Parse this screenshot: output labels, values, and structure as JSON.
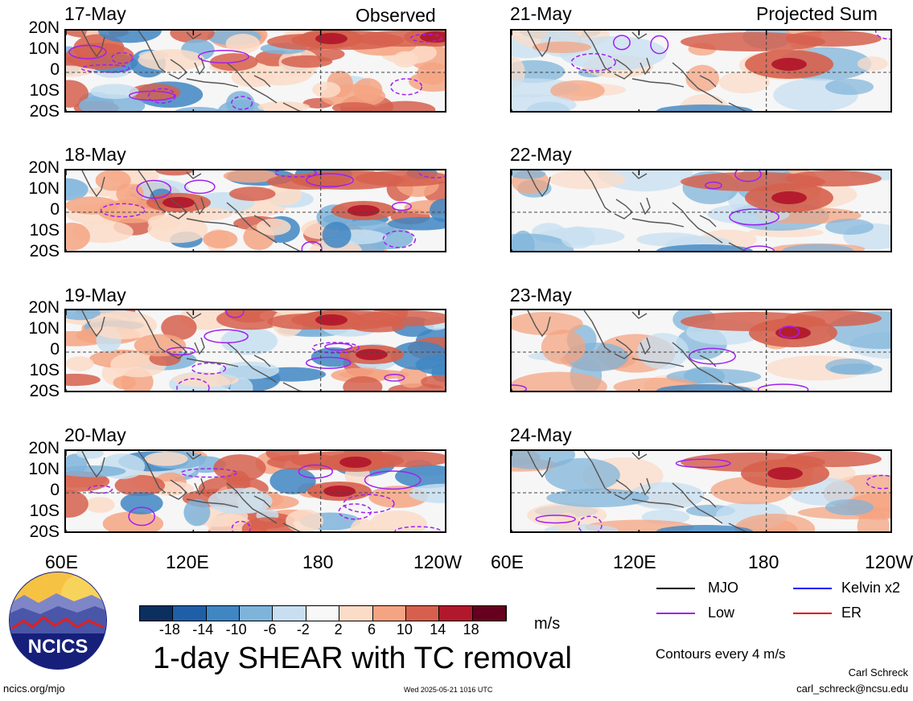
{
  "headers": {
    "observed": "Observed",
    "projected": "Projected Sum"
  },
  "observed_dates": [
    "17-May",
    "18-May",
    "19-May",
    "20-May"
  ],
  "projected_dates": [
    "21-May",
    "22-May",
    "23-May",
    "24-May"
  ],
  "lat_labels": [
    "20N",
    "10N",
    "0",
    "10S",
    "20S"
  ],
  "lon_labels": [
    "60E",
    "120E",
    "180",
    "120W"
  ],
  "colorbar": {
    "ticks": [
      "-18",
      "-14",
      "-10",
      "-6",
      "-2",
      "2",
      "6",
      "10",
      "14",
      "18"
    ],
    "colors": [
      "#0b2f5e",
      "#1f5fa8",
      "#3f86c3",
      "#7fb4da",
      "#c7dff0",
      "#f8f8f8",
      "#fbdcc8",
      "#f4a482",
      "#d6604d",
      "#b2182b",
      "#67001f"
    ],
    "units": "m/s"
  },
  "title": "1-day SHEAR with TC removal",
  "legend": {
    "items": [
      {
        "label": "MJO",
        "color": "#000000"
      },
      {
        "label": "Kelvin x2",
        "color": "#0000ff"
      },
      {
        "label": "Low",
        "color": "#a020f0"
      },
      {
        "label": "ER",
        "color": "#e00000"
      }
    ],
    "contours": "Contours every 4 m/s"
  },
  "footer": {
    "url": "ncics.org/mjo",
    "timestamp": "Wed 2025-05-21 1016 UTC",
    "author": "Carl Schreck",
    "email": "carl_schreck@ncsu.edu"
  },
  "logo": {
    "text": "NCICS"
  },
  "chart_data": [
    {
      "type": "heatmap",
      "description_panels": "observed",
      "xlabel": "",
      "ylabel": "",
      "x_ticks": [
        "60E",
        "120E",
        "180",
        "120W"
      ],
      "y_ticks": [
        "20N",
        "10N",
        "0",
        "10S",
        "20S"
      ],
      "xlim": [
        "60E",
        "120W"
      ],
      "ylim": [
        "20S",
        "20N"
      ],
      "panels": [
        {
          "date": "17-May",
          "max_shear_region": "10N-20N 150E-120W",
          "approx_max": 18
        },
        {
          "date": "18-May",
          "max_shear_region": "0-10N 180-150W",
          "approx_max": 18
        },
        {
          "date": "19-May",
          "max_shear_region": "0-20N 170E-150W",
          "approx_max": 18
        },
        {
          "date": "20-May",
          "max_shear_region": "10N-20N 150E-160W",
          "approx_max": 18
        }
      ],
      "value_units": "m/s",
      "color_levels": [
        -18,
        -14,
        -10,
        -6,
        -2,
        2,
        6,
        10,
        14,
        18
      ]
    },
    {
      "type": "heatmap",
      "description_panels": "projected",
      "x_ticks": [
        "60E",
        "120E",
        "180",
        "120W"
      ],
      "y_ticks": [
        "20N",
        "10N",
        "0",
        "10S",
        "20S"
      ],
      "panels": [
        {
          "date": "21-May",
          "max_shear_region": "5N-15N 180-160W",
          "approx_max": 18
        },
        {
          "date": "22-May",
          "max_shear_region": "5N-15N 180-160W",
          "approx_max": 14
        },
        {
          "date": "23-May",
          "max_shear_region": "5N-15N 175E-165W",
          "approx_max": 14
        },
        {
          "date": "24-May",
          "max_shear_region": "5N-15N 175E-165W",
          "approx_max": 14
        }
      ],
      "value_units": "m/s",
      "color_levels": [
        -18,
        -14,
        -10,
        -6,
        -2,
        2,
        6,
        10,
        14,
        18
      ]
    }
  ]
}
